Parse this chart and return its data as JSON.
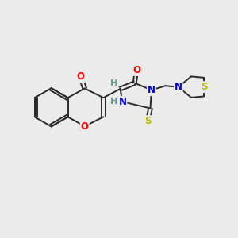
{
  "background_color": "#ebebeb",
  "bond_color": "#2a2a2a",
  "atom_colors": {
    "O": "#ff0000",
    "N": "#0000ee",
    "S": "#bbbb00",
    "H": "#6a9a9a",
    "C": "#2a2a2a"
  },
  "figsize": [
    3.0,
    3.0
  ],
  "dpi": 100
}
